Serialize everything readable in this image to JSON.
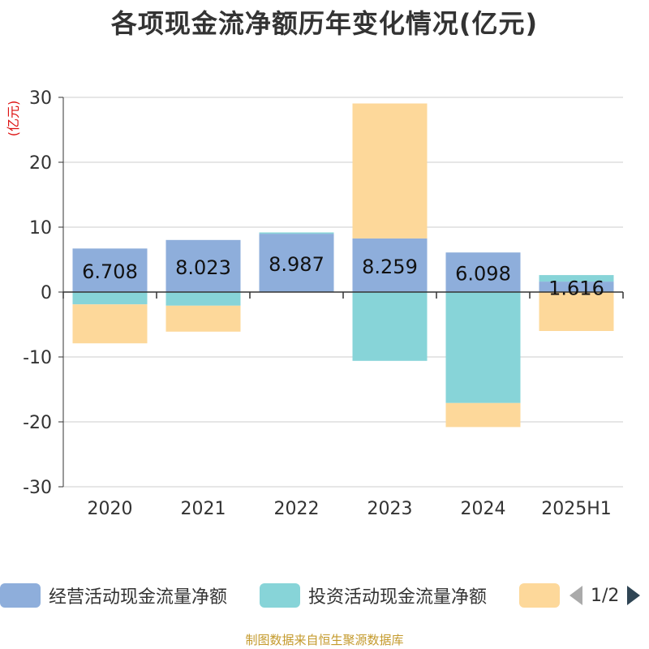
{
  "title": "各项现金流净额历年变化情况(亿元)",
  "source": "制图数据来自恒生聚源数据库",
  "legend": {
    "items": [
      {
        "label": "经营活动现金流量净额",
        "color": "#8eaedb"
      },
      {
        "label": "投资活动现金流量净额",
        "color": "#87d4d8"
      },
      {
        "label": "",
        "color": "#fdd89a"
      }
    ],
    "page": "1/2"
  },
  "chart_data": {
    "type": "bar",
    "stacked": true,
    "categories": [
      "2020",
      "2021",
      "2022",
      "2023",
      "2024",
      "2025H1"
    ],
    "ylabel": "(亿元)",
    "ylim": [
      -30,
      30
    ],
    "yticks": [
      30,
      20,
      10,
      0,
      -10,
      -20,
      -30
    ],
    "grid": true,
    "legend_position": "bottom",
    "series": [
      {
        "name": "经营活动现金流量净额",
        "color": "#8eaedb",
        "values": [
          6.708,
          8.023,
          8.987,
          8.259,
          6.098,
          1.616
        ],
        "labels": [
          "6.708",
          "8.023",
          "8.987",
          "8.259",
          "6.098",
          "1.616"
        ]
      },
      {
        "name": "投资活动现金流量净额",
        "color": "#87d4d8",
        "values": [
          -1.9,
          -2.1,
          0.2,
          -10.6,
          -17.1,
          1.0
        ]
      },
      {
        "color": "#fdd89a",
        "values": [
          -6.0,
          -4.0,
          0.0,
          20.8,
          -3.7,
          -6.0
        ]
      }
    ]
  }
}
